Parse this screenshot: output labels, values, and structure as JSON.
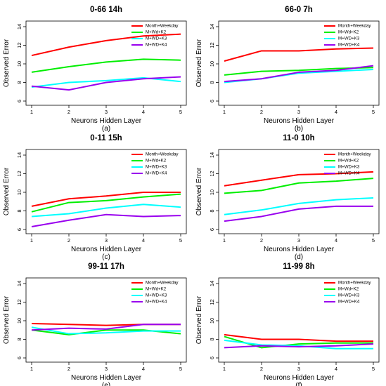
{
  "figure": {
    "background": "#ffffff"
  },
  "legend_labels": [
    "Month+Weekday",
    "M+Wd+K2",
    "M+WD+K3",
    "M+WD+K4"
  ],
  "colors": [
    "#ff0000",
    "#00ee00",
    "#00ffff",
    "#9900ee"
  ],
  "chart_data": [
    {
      "type": "line",
      "title": "0-66 14h",
      "panel_label": "(a)",
      "xlabel": "Neurons Hidden Layer",
      "ylabel": "Observed Error",
      "x": [
        1,
        2,
        3,
        4,
        5
      ],
      "xlim": [
        1,
        5
      ],
      "ylim": [
        6,
        14
      ],
      "yticks": [
        6,
        8,
        10,
        12,
        14
      ],
      "legend_position": "top-right",
      "series": [
        {
          "name": "Month+Weekday",
          "values": [
            10.9,
            11.8,
            12.5,
            13.0,
            13.2
          ]
        },
        {
          "name": "M+Wd+K2",
          "values": [
            9.1,
            9.7,
            10.2,
            10.5,
            10.4
          ]
        },
        {
          "name": "M+WD+K3",
          "values": [
            7.5,
            8.0,
            8.2,
            8.5,
            8.1
          ]
        },
        {
          "name": "M+WD+K4",
          "values": [
            7.6,
            7.2,
            8.0,
            8.4,
            8.6
          ]
        }
      ]
    },
    {
      "type": "line",
      "title": "66-0 7h",
      "panel_label": "(b)",
      "xlabel": "Neurons Hidden Layer",
      "ylabel": "Observed Error",
      "x": [
        1,
        2,
        3,
        4,
        5
      ],
      "xlim": [
        1,
        5
      ],
      "ylim": [
        6,
        14
      ],
      "yticks": [
        6,
        8,
        10,
        12,
        14
      ],
      "legend_position": "top-right",
      "series": [
        {
          "name": "Month+Weekday",
          "values": [
            10.3,
            11.4,
            11.4,
            11.6,
            11.7
          ]
        },
        {
          "name": "M+Wd+K2",
          "values": [
            8.8,
            9.2,
            9.3,
            9.5,
            9.6
          ]
        },
        {
          "name": "M+WD+K3",
          "values": [
            8.0,
            8.4,
            9.0,
            9.2,
            9.4
          ]
        },
        {
          "name": "M+WD+K4",
          "values": [
            8.1,
            8.4,
            9.1,
            9.3,
            9.8
          ]
        }
      ]
    },
    {
      "type": "line",
      "title": "0-11 15h",
      "panel_label": "(c)",
      "xlabel": "Neurons Hidden Layer",
      "ylabel": "Observed Error",
      "x": [
        1,
        2,
        3,
        4,
        5
      ],
      "xlim": [
        1,
        5
      ],
      "ylim": [
        6,
        14
      ],
      "yticks": [
        6,
        8,
        10,
        12,
        14
      ],
      "legend_position": "top-right",
      "series": [
        {
          "name": "Month+Weekday",
          "values": [
            8.5,
            9.3,
            9.6,
            10.0,
            10.0
          ]
        },
        {
          "name": "M+Wd+K2",
          "values": [
            7.9,
            8.9,
            9.1,
            9.5,
            9.8
          ]
        },
        {
          "name": "M+WD+K3",
          "values": [
            7.4,
            7.7,
            8.3,
            8.7,
            8.4
          ]
        },
        {
          "name": "M+WD+K4",
          "values": [
            6.3,
            7.0,
            7.6,
            7.4,
            7.5
          ]
        }
      ]
    },
    {
      "type": "line",
      "title": "11-0 10h",
      "panel_label": "(d)",
      "xlabel": "Neurons Hidden Layer",
      "ylabel": "Observed Error",
      "x": [
        1,
        2,
        3,
        4,
        5
      ],
      "xlim": [
        1,
        5
      ],
      "ylim": [
        6,
        14
      ],
      "yticks": [
        6,
        8,
        10,
        12,
        14
      ],
      "legend_position": "top-right",
      "series": [
        {
          "name": "Month+Weekday",
          "values": [
            10.7,
            11.3,
            11.9,
            12.0,
            12.2
          ]
        },
        {
          "name": "M+Wd+K2",
          "values": [
            9.9,
            10.2,
            11.0,
            11.2,
            11.5
          ]
        },
        {
          "name": "M+WD+K3",
          "values": [
            7.6,
            8.1,
            8.8,
            9.2,
            9.4
          ]
        },
        {
          "name": "M+WD+K4",
          "values": [
            6.9,
            7.4,
            8.2,
            8.5,
            8.5
          ]
        }
      ]
    },
    {
      "type": "line",
      "title": "99-11 17h",
      "panel_label": "(e)",
      "xlabel": "Neurons Hidden Layer",
      "ylabel": "Observed Error",
      "x": [
        1,
        2,
        3,
        4,
        5
      ],
      "xlim": [
        1,
        5
      ],
      "ylim": [
        6,
        14
      ],
      "yticks": [
        6,
        8,
        10,
        12,
        14
      ],
      "legend_position": "top-right",
      "series": [
        {
          "name": "Month+Weekday",
          "values": [
            9.7,
            9.6,
            9.5,
            9.6,
            9.6
          ]
        },
        {
          "name": "M+Wd+K2",
          "values": [
            9.0,
            8.5,
            9.0,
            9.0,
            8.6
          ]
        },
        {
          "name": "M+WD+K3",
          "values": [
            9.3,
            8.6,
            8.7,
            8.9,
            8.9
          ]
        },
        {
          "name": "M+WD+K4",
          "values": [
            9.0,
            9.2,
            9.1,
            9.6,
            9.6
          ]
        }
      ]
    },
    {
      "type": "line",
      "title": "11-99 8h",
      "panel_label": "(f)",
      "xlabel": "Neurons Hidden Layer",
      "ylabel": "Observed Error",
      "x": [
        1,
        2,
        3,
        4,
        5
      ],
      "xlim": [
        1,
        5
      ],
      "ylim": [
        6,
        14
      ],
      "yticks": [
        6,
        8,
        10,
        12,
        14
      ],
      "legend_position": "top-right",
      "series": [
        {
          "name": "Month+Weekday",
          "values": [
            8.5,
            8.0,
            8.0,
            7.8,
            7.8
          ]
        },
        {
          "name": "M+Wd+K2",
          "values": [
            8.3,
            7.1,
            7.5,
            7.6,
            7.6
          ]
        },
        {
          "name": "M+WD+K3",
          "values": [
            7.9,
            7.4,
            7.3,
            7.0,
            7.0
          ]
        },
        {
          "name": "M+WD+K4",
          "values": [
            7.1,
            7.3,
            7.2,
            7.3,
            7.5
          ]
        }
      ]
    }
  ]
}
